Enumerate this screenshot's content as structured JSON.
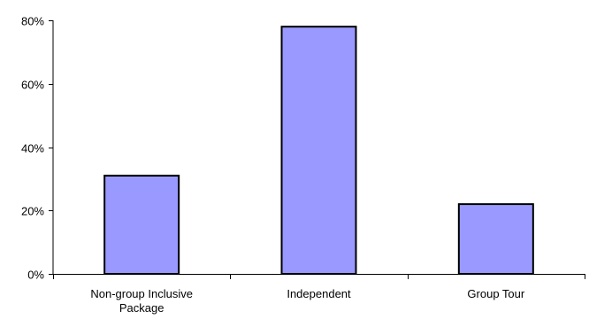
{
  "chart_data": {
    "type": "bar",
    "title": "",
    "xlabel": "",
    "ylabel": "",
    "categories": [
      [
        "Non-group Inclusive",
        "Package"
      ],
      [
        "Independent"
      ],
      [
        "Group Tour"
      ]
    ],
    "values": [
      31,
      78,
      22
    ],
    "ylim": [
      0,
      80
    ],
    "yticks": [
      0,
      20,
      40,
      60,
      80
    ],
    "ytick_labels": [
      "0%",
      "20%",
      "40%",
      "60%",
      "80%"
    ],
    "grid": false,
    "legend": "none",
    "colors": {
      "bar_fill": "#9999ff",
      "bar_stroke": "#000000",
      "axis": "#000000"
    }
  }
}
